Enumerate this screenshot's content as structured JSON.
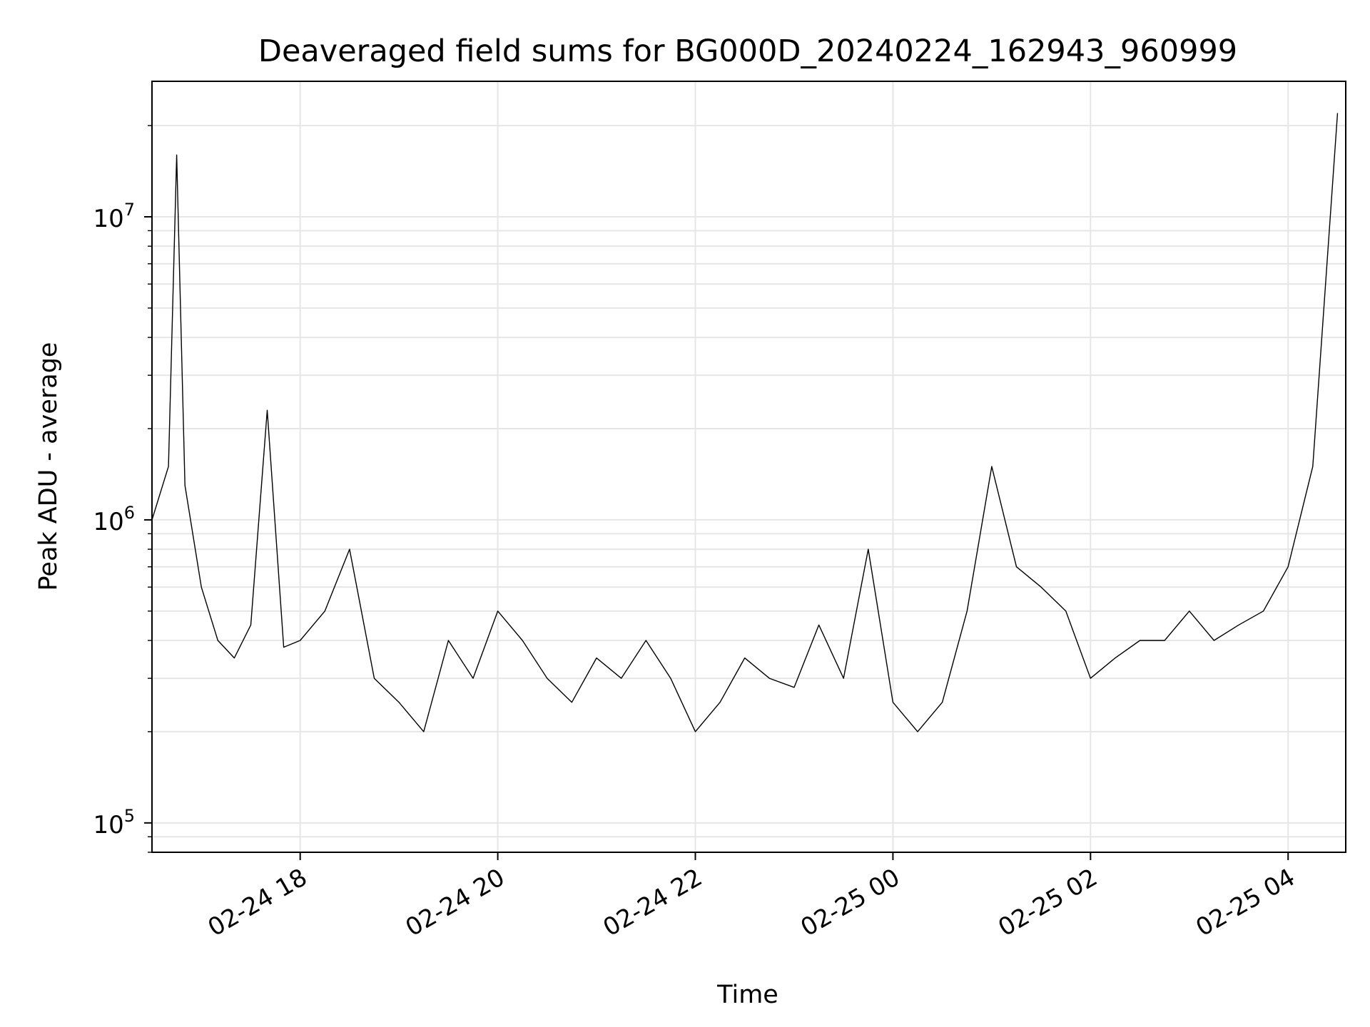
{
  "chart_data": {
    "type": "line",
    "title": "Deaveraged field sums for BG000D_20240224_162943_960999",
    "xlabel": "Time",
    "ylabel": "Peak ADU - average",
    "yscale": "log",
    "ylim": [
      80000,
      28000000
    ],
    "xlim": [
      "2024-02-24 16:30",
      "2024-02-25 04:35"
    ],
    "x_ticks": [
      {
        "value": "2024-02-24 18:00",
        "label": "02-24 18"
      },
      {
        "value": "2024-02-24 20:00",
        "label": "02-24 20"
      },
      {
        "value": "2024-02-24 22:00",
        "label": "02-24 22"
      },
      {
        "value": "2024-02-25 00:00",
        "label": "02-25 00"
      },
      {
        "value": "2024-02-25 02:00",
        "label": "02-25 02"
      },
      {
        "value": "2024-02-25 04:00",
        "label": "02-25 04"
      }
    ],
    "y_ticks": [
      {
        "value": 100000,
        "base": "10",
        "exp": "5"
      },
      {
        "value": 1000000,
        "base": "10",
        "exp": "6"
      },
      {
        "value": 10000000,
        "base": "10",
        "exp": "7"
      }
    ],
    "grid": true,
    "legend": "none",
    "line_color": "#000000",
    "series": [
      {
        "x": [
          "2024-02-24 16:30",
          "2024-02-24 16:40",
          "2024-02-24 16:45",
          "2024-02-24 16:50",
          "2024-02-24 17:00",
          "2024-02-24 17:10",
          "2024-02-24 17:20",
          "2024-02-24 17:30",
          "2024-02-24 17:40",
          "2024-02-24 17:50",
          "2024-02-24 18:00",
          "2024-02-24 18:15",
          "2024-02-24 18:30",
          "2024-02-24 18:45",
          "2024-02-24 19:00",
          "2024-02-24 19:15",
          "2024-02-24 19:30",
          "2024-02-24 19:45",
          "2024-02-24 20:00",
          "2024-02-24 20:15",
          "2024-02-24 20:30",
          "2024-02-24 20:45",
          "2024-02-24 21:00",
          "2024-02-24 21:15",
          "2024-02-24 21:30",
          "2024-02-24 21:45",
          "2024-02-24 22:00",
          "2024-02-24 22:15",
          "2024-02-24 22:30",
          "2024-02-24 22:45",
          "2024-02-24 23:00",
          "2024-02-24 23:15",
          "2024-02-24 23:30",
          "2024-02-24 23:45",
          "2024-02-25 00:00",
          "2024-02-25 00:15",
          "2024-02-25 00:30",
          "2024-02-25 00:45",
          "2024-02-25 01:00",
          "2024-02-25 01:15",
          "2024-02-25 01:30",
          "2024-02-25 01:45",
          "2024-02-25 02:00",
          "2024-02-25 02:15",
          "2024-02-25 02:30",
          "2024-02-25 02:45",
          "2024-02-25 03:00",
          "2024-02-25 03:15",
          "2024-02-25 03:30",
          "2024-02-25 03:45",
          "2024-02-25 04:00",
          "2024-02-25 04:15",
          "2024-02-25 04:30"
        ],
        "y": [
          1000000,
          1500000,
          16000000,
          1300000,
          600000,
          400000,
          350000,
          450000,
          2300000,
          380000,
          400000,
          500000,
          800000,
          300000,
          250000,
          200000,
          400000,
          300000,
          500000,
          400000,
          300000,
          250000,
          350000,
          300000,
          400000,
          300000,
          200000,
          250000,
          350000,
          300000,
          280000,
          450000,
          300000,
          800000,
          250000,
          200000,
          250000,
          500000,
          1500000,
          700000,
          600000,
          500000,
          300000,
          350000,
          400000,
          400000,
          500000,
          400000,
          450000,
          500000,
          700000,
          1500000,
          22000000
        ]
      }
    ]
  }
}
